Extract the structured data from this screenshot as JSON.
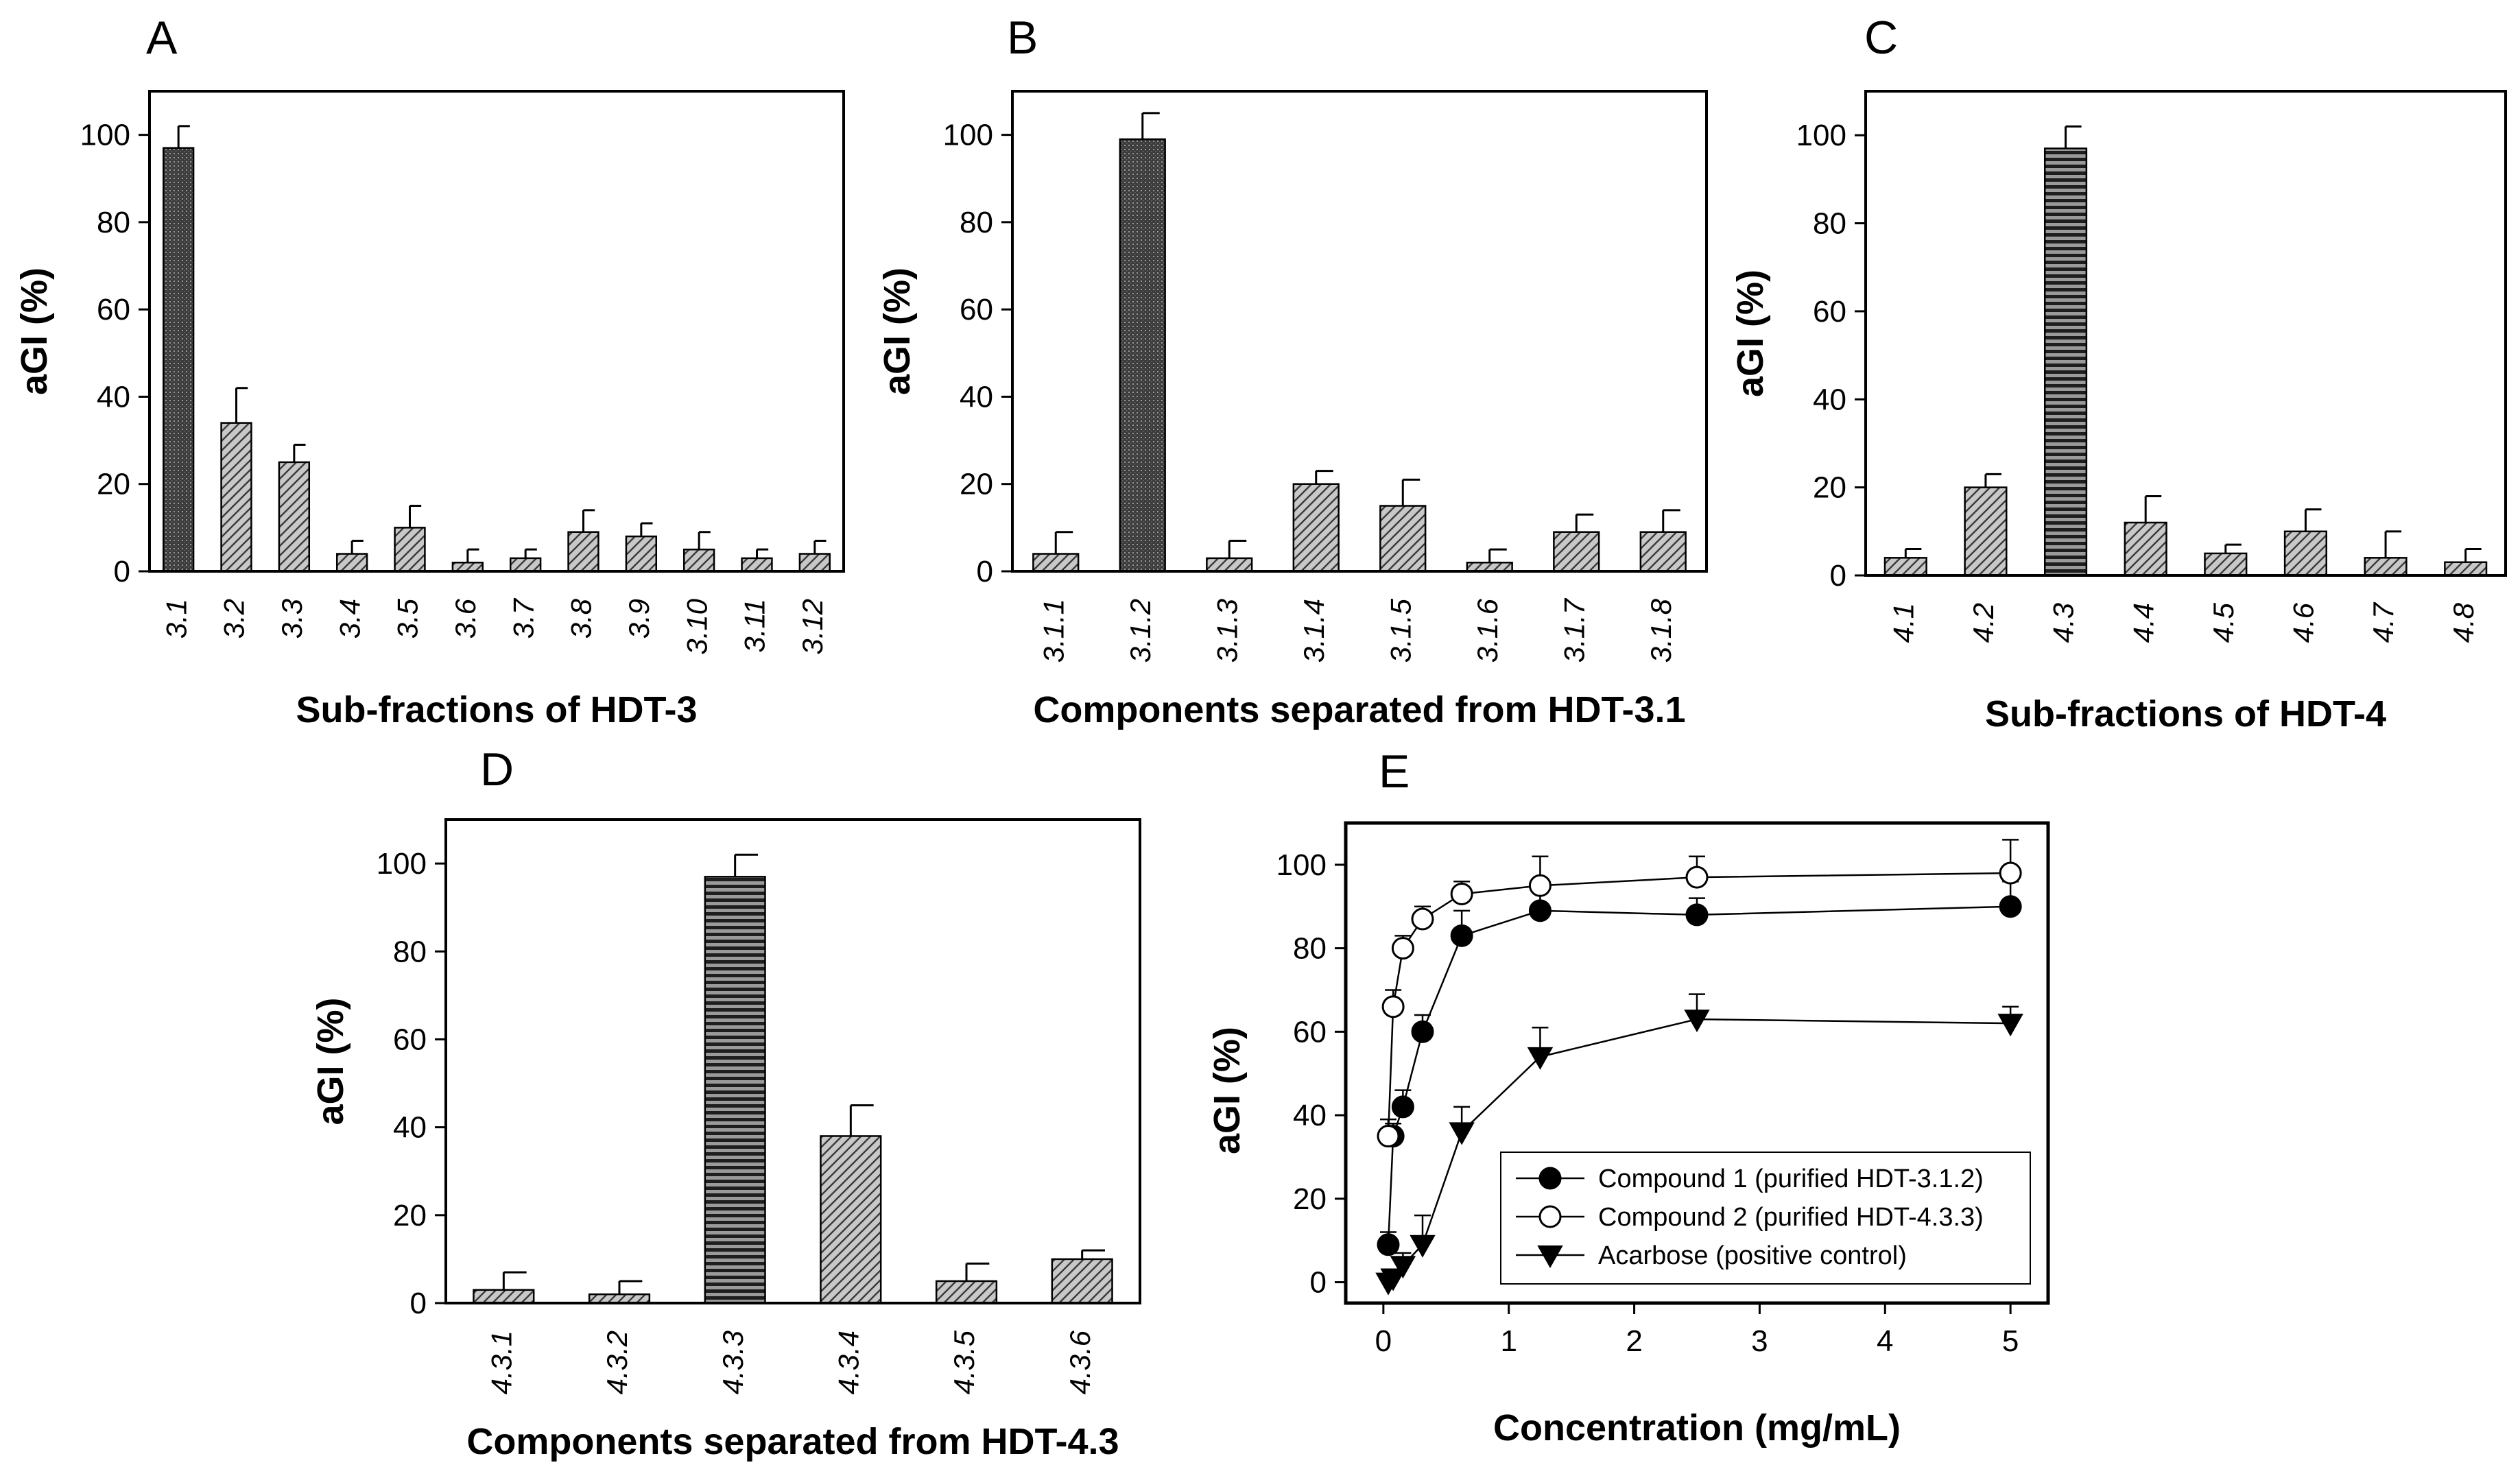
{
  "chart_data": [
    {
      "panel": "A",
      "type": "bar",
      "categories": [
        "3.1",
        "3.2",
        "3.3",
        "3.4",
        "3.5",
        "3.6",
        "3.7",
        "3.8",
        "3.9",
        "3.10",
        "3.11",
        "3.12"
      ],
      "values": [
        97,
        34,
        25,
        4,
        10,
        2,
        3,
        9,
        8,
        5,
        3,
        4
      ],
      "errors": [
        5,
        8,
        4,
        3,
        5,
        3,
        2,
        5,
        3,
        4,
        2,
        3
      ],
      "fill": [
        "dots",
        "hatch",
        "hatch",
        "hatch",
        "hatch",
        "hatch",
        "hatch",
        "hatch",
        "hatch",
        "hatch",
        "hatch",
        "hatch"
      ],
      "xlabel": "Sub-fractions of HDT-3",
      "ylabel": "aGI (%)",
      "ylim": [
        0,
        110
      ],
      "yticks": [
        0,
        20,
        40,
        60,
        80,
        100
      ]
    },
    {
      "panel": "B",
      "type": "bar",
      "categories": [
        "3.1.1",
        "3.1.2",
        "3.1.3",
        "3.1.4",
        "3.1.5",
        "3.1.6",
        "3.1.7",
        "3.1.8"
      ],
      "values": [
        4,
        99,
        3,
        20,
        15,
        2,
        9,
        9
      ],
      "errors": [
        5,
        6,
        4,
        3,
        6,
        3,
        4,
        5
      ],
      "fill": [
        "hatch",
        "dots",
        "hatch",
        "hatch",
        "hatch",
        "hatch",
        "hatch",
        "hatch"
      ],
      "xlabel": "Components separated from HDT-3.1",
      "ylabel": "aGI (%)",
      "ylim": [
        0,
        110
      ],
      "yticks": [
        0,
        20,
        40,
        60,
        80,
        100
      ]
    },
    {
      "panel": "C",
      "type": "bar",
      "categories": [
        "4.1",
        "4.2",
        "4.3",
        "4.4",
        "4.5",
        "4.6",
        "4.7",
        "4.8"
      ],
      "values": [
        4,
        20,
        97,
        12,
        5,
        10,
        4,
        3
      ],
      "errors": [
        2,
        3,
        5,
        6,
        2,
        5,
        6,
        3
      ],
      "fill": [
        "hatch",
        "hatch",
        "stripes",
        "hatch",
        "hatch",
        "hatch",
        "hatch",
        "hatch"
      ],
      "xlabel": "Sub-fractions of HDT-4",
      "ylabel": "aGI (%)",
      "ylim": [
        0,
        110
      ],
      "yticks": [
        0,
        20,
        40,
        60,
        80,
        100
      ]
    },
    {
      "panel": "D",
      "type": "bar",
      "categories": [
        "4.3.1",
        "4.3.2",
        "4.3.3",
        "4.3.4",
        "4.3.5",
        "4.3.6"
      ],
      "values": [
        3,
        2,
        97,
        38,
        5,
        10
      ],
      "errors": [
        4,
        3,
        5,
        7,
        4,
        2
      ],
      "fill": [
        "hatch",
        "hatch",
        "stripes",
        "hatch",
        "hatch",
        "hatch"
      ],
      "xlabel": "Components separated from HDT-4.3",
      "ylabel": "aGI (%)",
      "ylim": [
        0,
        110
      ],
      "yticks": [
        0,
        20,
        40,
        60,
        80,
        100
      ]
    },
    {
      "panel": "E",
      "type": "line",
      "xlabel": "Concentration (mg/mL)",
      "ylabel": "aGI (%)",
      "xlim": [
        -0.3,
        5.3
      ],
      "ylim": [
        -5,
        110
      ],
      "xticks": [
        0,
        1,
        2,
        3,
        4,
        5
      ],
      "yticks": [
        0,
        20,
        40,
        60,
        80,
        100
      ],
      "series": [
        {
          "name": "Compound 1 (purified HDT-3.1.2)",
          "marker": "filled-circle",
          "x": [
            0.039,
            0.078,
            0.156,
            0.3125,
            0.625,
            1.25,
            2.5,
            5
          ],
          "y": [
            9,
            35,
            42,
            60,
            83,
            89,
            88,
            90
          ],
          "err": [
            3,
            3,
            4,
            4,
            6,
            7,
            4,
            6
          ]
        },
        {
          "name": "Compound 2 (purified HDT-4.3.3)",
          "marker": "open-circle",
          "x": [
            0.039,
            0.078,
            0.156,
            0.3125,
            0.625,
            1.25,
            2.5,
            5
          ],
          "y": [
            35,
            66,
            80,
            87,
            93,
            95,
            97,
            98
          ],
          "err": [
            4,
            4,
            3,
            3,
            3,
            7,
            5,
            8
          ]
        },
        {
          "name": "Acarbose (positive control)",
          "marker": "filled-triangle-down",
          "x": [
            0.039,
            0.078,
            0.156,
            0.3125,
            0.625,
            1.25,
            2.5,
            5
          ],
          "y": [
            0,
            1,
            4,
            9,
            36,
            54,
            63,
            62
          ],
          "err": [
            2,
            2,
            3,
            7,
            6,
            7,
            6,
            4
          ]
        }
      ],
      "legend_position": "bottom-right"
    }
  ]
}
